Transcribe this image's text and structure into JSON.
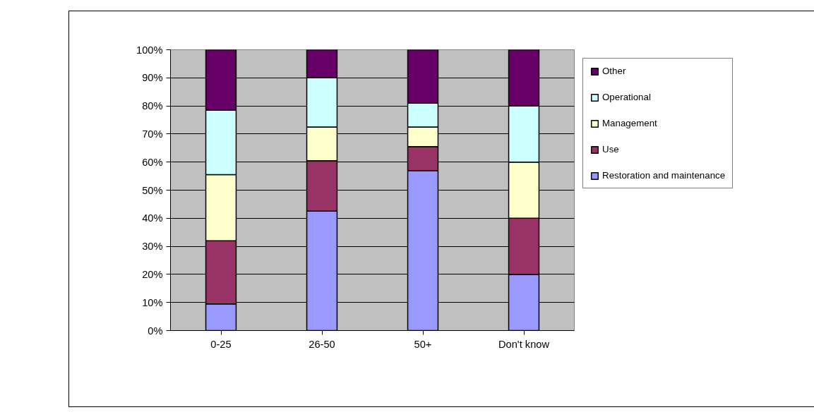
{
  "chart_data": {
    "type": "bar",
    "stacked": true,
    "categories": [
      "0-25",
      "26-50",
      "50+",
      "Don't know"
    ],
    "series": [
      {
        "name": "Restoration and maintenance",
        "color": "#9999ff",
        "values": [
          9.5,
          42.5,
          57,
          20
        ]
      },
      {
        "name": "Use",
        "color": "#993366",
        "values": [
          22.5,
          18,
          8.5,
          20
        ]
      },
      {
        "name": "Management",
        "color": "#ffffcc",
        "values": [
          23.5,
          12,
          7,
          20
        ]
      },
      {
        "name": "Operational",
        "color": "#ccffff",
        "values": [
          23,
          17.5,
          8.5,
          20
        ]
      },
      {
        "name": "Other",
        "color": "#660066",
        "values": [
          21.5,
          10,
          19,
          20
        ]
      }
    ],
    "ylim": [
      0,
      100
    ],
    "yticks": [
      {
        "value": 0,
        "label": "0%"
      },
      {
        "value": 10,
        "label": "10%"
      },
      {
        "value": 20,
        "label": "20%"
      },
      {
        "value": 30,
        "label": "30%"
      },
      {
        "value": 40,
        "label": "40%"
      },
      {
        "value": 50,
        "label": "50%"
      },
      {
        "value": 60,
        "label": "60%"
      },
      {
        "value": 70,
        "label": "70%"
      },
      {
        "value": 80,
        "label": "80%"
      },
      {
        "value": 90,
        "label": "90%"
      },
      {
        "value": 100,
        "label": "100%"
      }
    ],
    "grid": "y",
    "legend": "right"
  }
}
